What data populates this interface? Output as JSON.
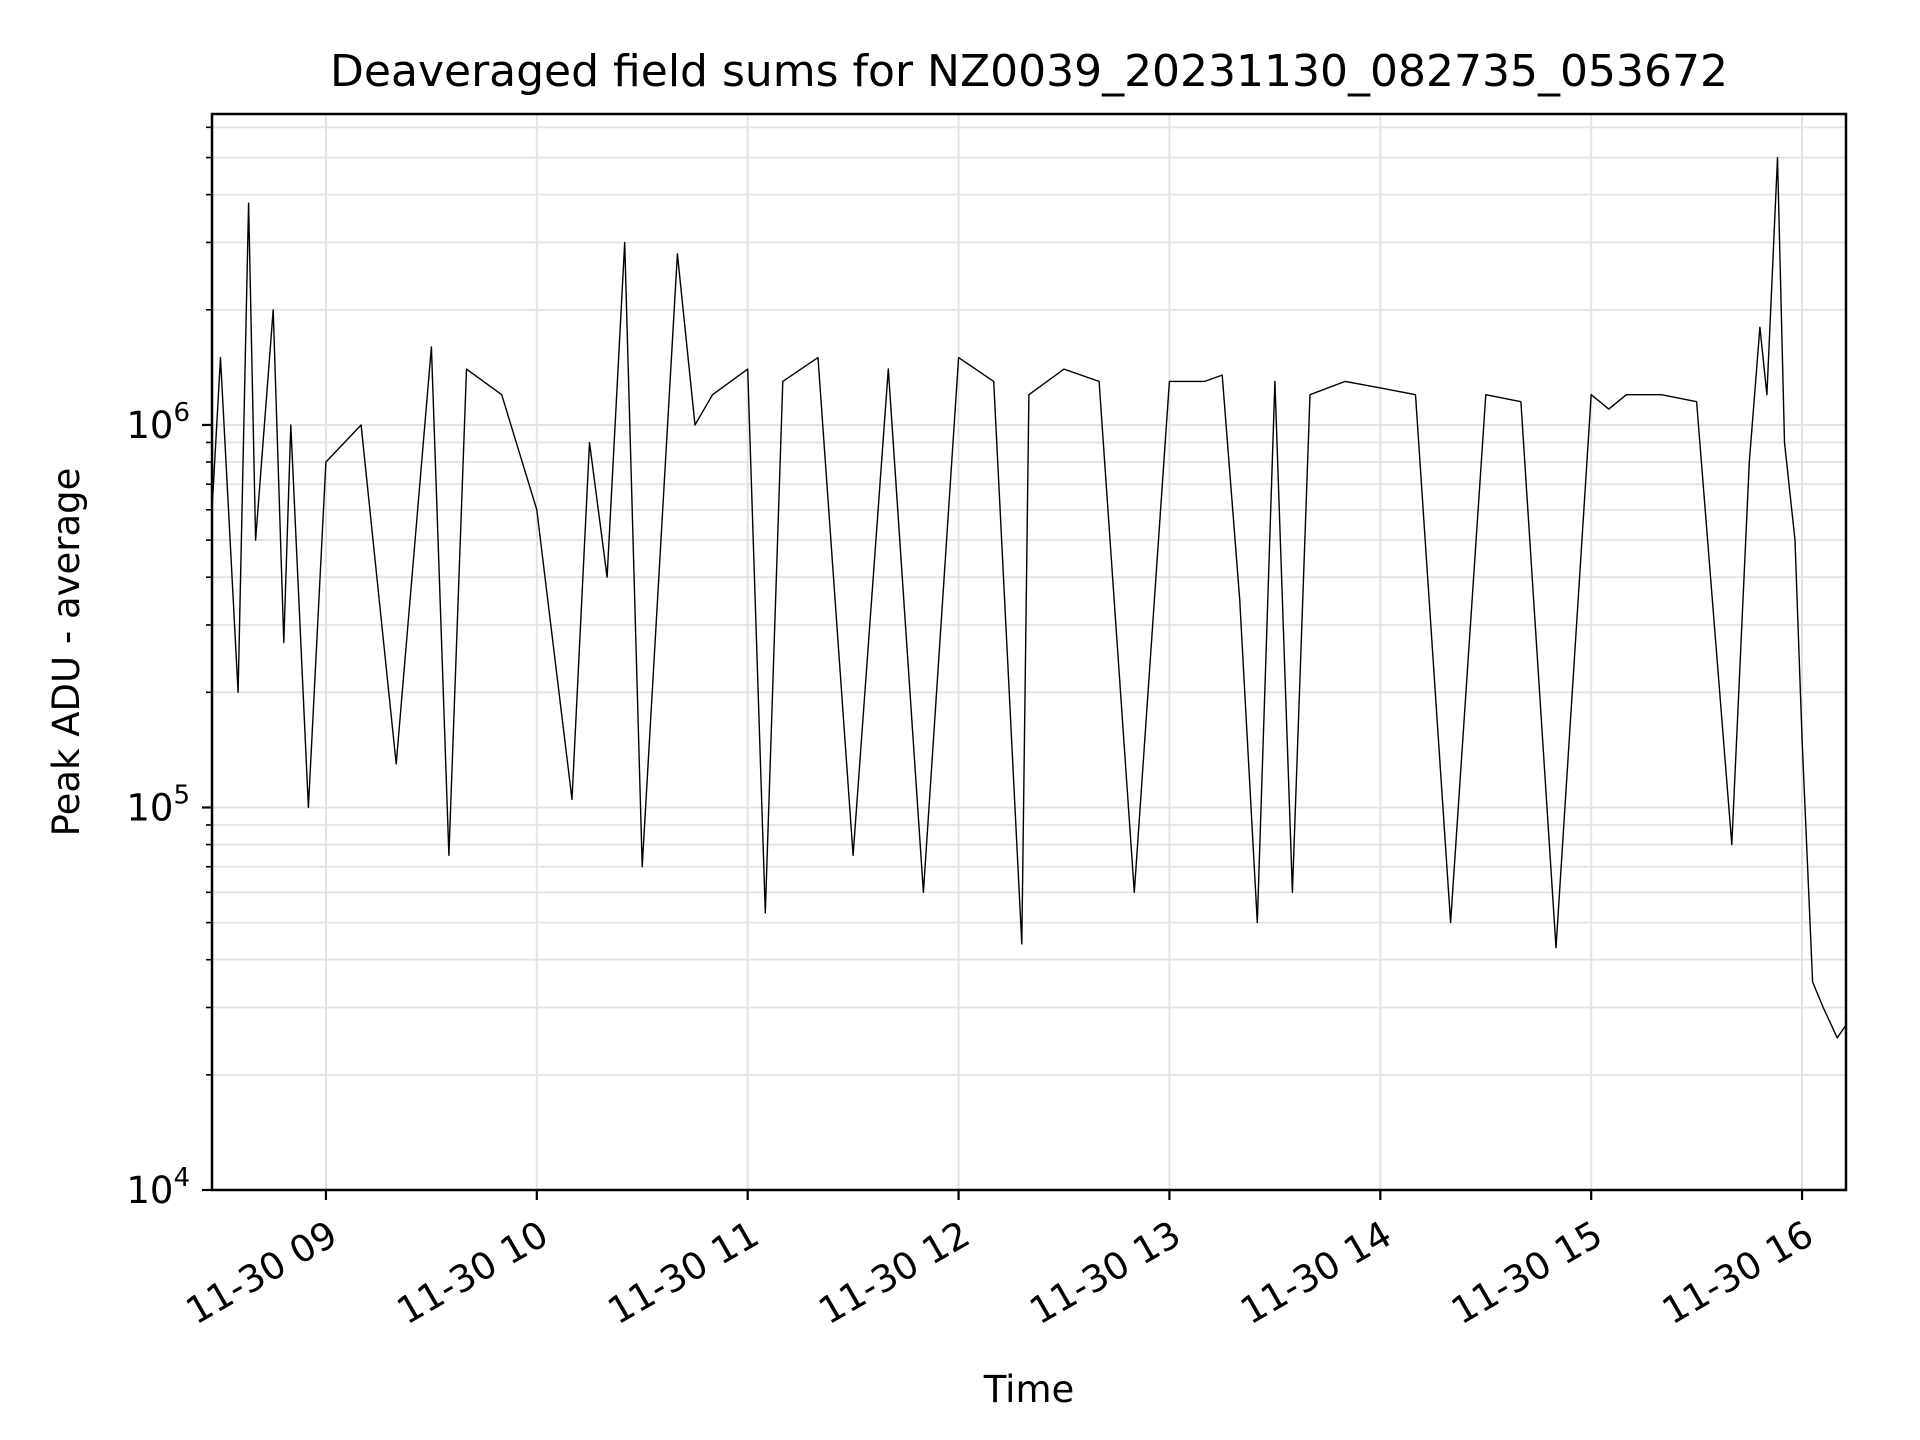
{
  "chart_data": {
    "type": "line",
    "title": "Deaveraged field sums for NZ0039_20231130_082735_053672",
    "xlabel": "Time",
    "ylabel": "Peak ADU - average",
    "y_scale": "log",
    "ylim": [
      10000,
      6500000
    ],
    "y_ticks": [
      {
        "value": 10000,
        "base": "10",
        "exp": "4"
      },
      {
        "value": 100000,
        "base": "10",
        "exp": "5"
      },
      {
        "value": 1000000,
        "base": "10",
        "exp": "6"
      }
    ],
    "xlim": [
      "2023-11-30 08:27:35",
      "2023-11-30 16:12:30"
    ],
    "x_ticks": [
      {
        "value": "2023-11-30 09:00",
        "label": "11-30 09"
      },
      {
        "value": "2023-11-30 10:00",
        "label": "11-30 10"
      },
      {
        "value": "2023-11-30 11:00",
        "label": "11-30 11"
      },
      {
        "value": "2023-11-30 12:00",
        "label": "11-30 12"
      },
      {
        "value": "2023-11-30 13:00",
        "label": "11-30 13"
      },
      {
        "value": "2023-11-30 14:00",
        "label": "11-30 14"
      },
      {
        "value": "2023-11-30 15:00",
        "label": "11-30 15"
      },
      {
        "value": "2023-11-30 16:00",
        "label": "11-30 16"
      }
    ],
    "grid": true,
    "line_color": "#000000",
    "series": [
      {
        "x": [
          "2023-11-30 08:27:35",
          "2023-11-30 08:30",
          "2023-11-30 08:35",
          "2023-11-30 08:38",
          "2023-11-30 08:40",
          "2023-11-30 08:45",
          "2023-11-30 08:48",
          "2023-11-30 08:50",
          "2023-11-30 08:55",
          "2023-11-30 09:00",
          "2023-11-30 09:10",
          "2023-11-30 09:20",
          "2023-11-30 09:30",
          "2023-11-30 09:35",
          "2023-11-30 09:40",
          "2023-11-30 09:50",
          "2023-11-30 10:00",
          "2023-11-30 10:10",
          "2023-11-30 10:15",
          "2023-11-30 10:20",
          "2023-11-30 10:25",
          "2023-11-30 10:30",
          "2023-11-30 10:40",
          "2023-11-30 10:45",
          "2023-11-30 10:50",
          "2023-11-30 11:00",
          "2023-11-30 11:05",
          "2023-11-30 11:10",
          "2023-11-30 11:20",
          "2023-11-30 11:30",
          "2023-11-30 11:40",
          "2023-11-30 11:50",
          "2023-11-30 12:00",
          "2023-11-30 12:10",
          "2023-11-30 12:18",
          "2023-11-30 12:20",
          "2023-11-30 12:30",
          "2023-11-30 12:40",
          "2023-11-30 12:50",
          "2023-11-30 13:00",
          "2023-11-30 13:10",
          "2023-11-30 13:15",
          "2023-11-30 13:20",
          "2023-11-30 13:25",
          "2023-11-30 13:30",
          "2023-11-30 13:35",
          "2023-11-30 13:40",
          "2023-11-30 13:50",
          "2023-11-30 14:00",
          "2023-11-30 14:10",
          "2023-11-30 14:20",
          "2023-11-30 14:30",
          "2023-11-30 14:40",
          "2023-11-30 14:50",
          "2023-11-30 15:00",
          "2023-11-30 15:05",
          "2023-11-30 15:10",
          "2023-11-30 15:20",
          "2023-11-30 15:30",
          "2023-11-30 15:40",
          "2023-11-30 15:45",
          "2023-11-30 15:48",
          "2023-11-30 15:50",
          "2023-11-30 15:53",
          "2023-11-30 15:55",
          "2023-11-30 15:58",
          "2023-11-30 16:00",
          "2023-11-30 16:03",
          "2023-11-30 16:06",
          "2023-11-30 16:10",
          "2023-11-30 16:12:30"
        ],
        "y": [
          600000,
          1500000,
          200000,
          3800000,
          500000,
          2000000,
          270000,
          1000000,
          100000,
          800000,
          1000000,
          130000,
          1600000,
          75000,
          1400000,
          1200000,
          600000,
          105000,
          900000,
          400000,
          3000000,
          70000,
          2800000,
          1000000,
          1200000,
          1400000,
          53000,
          1300000,
          1500000,
          75000,
          1400000,
          60000,
          1500000,
          1300000,
          44000,
          1200000,
          1400000,
          1300000,
          60000,
          1300000,
          1300000,
          1350000,
          350000,
          50000,
          1300000,
          60000,
          1200000,
          1300000,
          1250000,
          1200000,
          50000,
          1200000,
          1150000,
          43000,
          1200000,
          1100000,
          1200000,
          1200000,
          1150000,
          80000,
          800000,
          1800000,
          1200000,
          5000000,
          900000,
          500000,
          150000,
          35000,
          30000,
          25000,
          27000
        ]
      }
    ]
  }
}
